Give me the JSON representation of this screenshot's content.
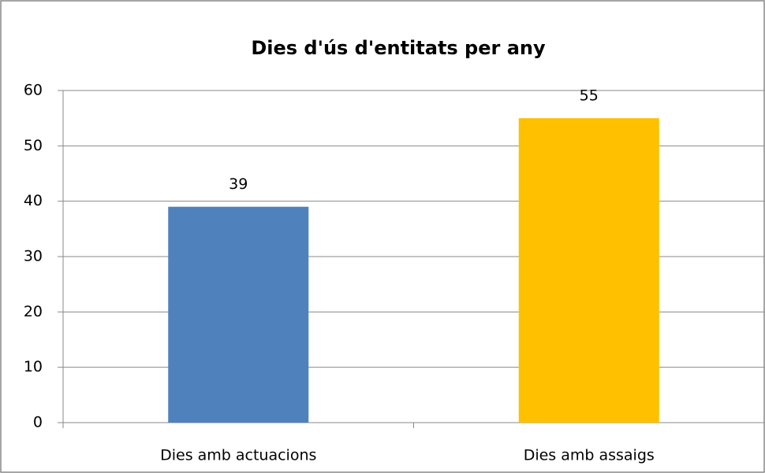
{
  "chart_data": {
    "type": "bar",
    "title": "Dies d'ús d'entitats per any",
    "categories": [
      "Dies amb actuacions",
      "Dies amb assaigs"
    ],
    "values": [
      39,
      55
    ],
    "colors": [
      "#4f81bd",
      "#ffc000"
    ],
    "ylim": [
      0,
      60
    ],
    "yticks": [
      0,
      10,
      20,
      30,
      40,
      50,
      60
    ],
    "grid": true,
    "data_labels": true
  }
}
